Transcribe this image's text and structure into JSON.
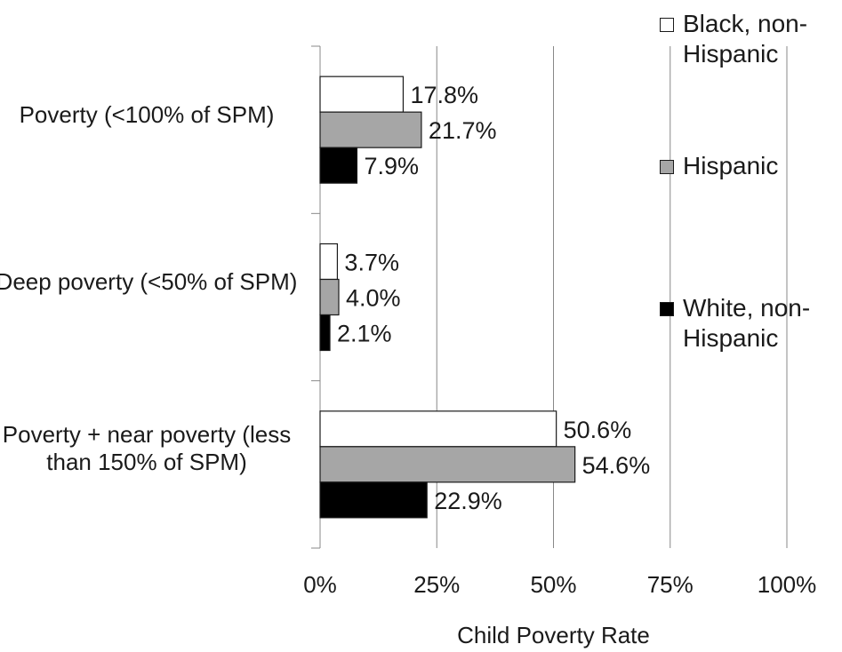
{
  "chart_data": {
    "type": "bar",
    "orientation": "horizontal",
    "categories": [
      "Poverty (<100% of SPM)",
      "Deep poverty (<50% of SPM)",
      "Poverty + near poverty (less than 150% of SPM)"
    ],
    "series": [
      {
        "name": "Black, non-Hispanic",
        "color": "#ffffff",
        "values": [
          17.8,
          3.7,
          50.6
        ],
        "labels": [
          "17.8%",
          "3.7%",
          "50.6%"
        ]
      },
      {
        "name": "Hispanic",
        "color": "#a6a6a6",
        "values": [
          21.7,
          4.0,
          54.6
        ],
        "labels": [
          "21.7%",
          "4.0%",
          "54.6%"
        ]
      },
      {
        "name": "White, non-Hispanic",
        "color": "#000000",
        "values": [
          7.9,
          2.1,
          22.9
        ],
        "labels": [
          "7.9%",
          "2.1%",
          "22.9%"
        ]
      }
    ],
    "xlabel": "Child Poverty Rate",
    "ylabel": "",
    "xlim": [
      0,
      100
    ],
    "xticks": [
      0,
      25,
      50,
      75,
      100
    ],
    "xtick_labels": [
      "0%",
      "25%",
      "50%",
      "75%",
      "100%"
    ],
    "grid": "vertical",
    "legend": "right"
  }
}
